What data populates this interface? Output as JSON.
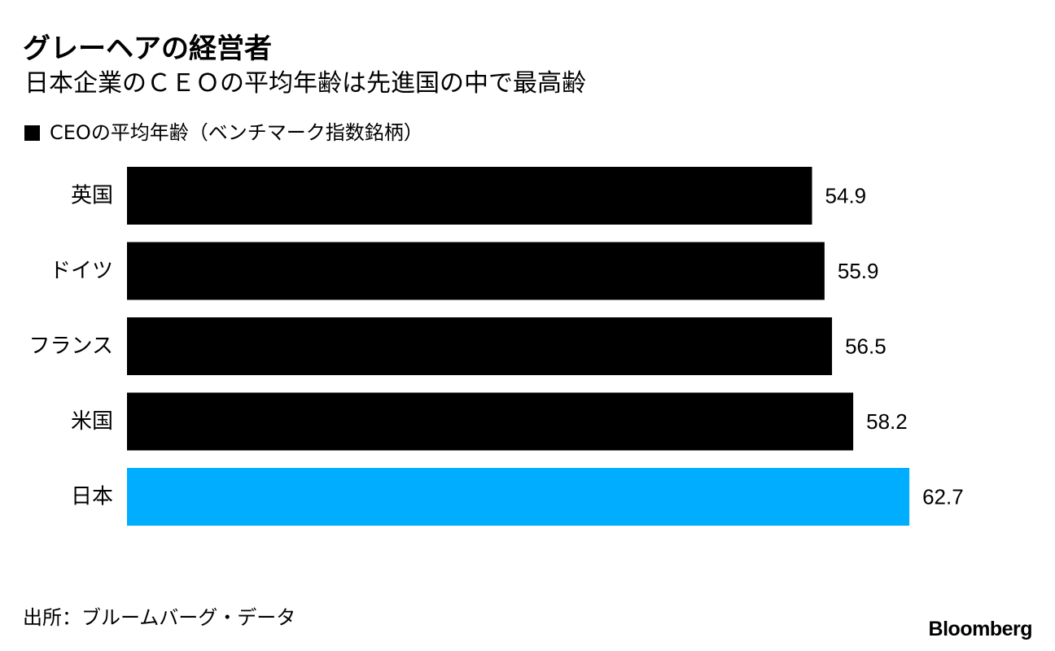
{
  "title": "グレーヘアの経営者",
  "subtitle": "日本企業のＣＥＯの平均年齢は先進国の中で最高齢",
  "source": "出所：ブルームバーグ・データ",
  "brand": "Bloomberg",
  "colors": {
    "default_bar": "#000000",
    "highlight_bar": "#00ADFF",
    "text": "#000000"
  },
  "chart_data": {
    "type": "bar",
    "orientation": "horizontal",
    "legend": "CEOの平均年齢（ベンチマーク指数銘柄）",
    "categories": [
      "英国",
      "ドイツ",
      "フランス",
      "米国",
      "日本"
    ],
    "values": [
      54.9,
      55.9,
      56.5,
      58.2,
      62.7
    ],
    "value_labels": [
      "54.9",
      "55.9",
      "56.5",
      "58.2",
      "62.7"
    ],
    "highlighted_category": "日本",
    "xlim": [
      0,
      70
    ],
    "grid": false,
    "legend_position": "top-left"
  }
}
